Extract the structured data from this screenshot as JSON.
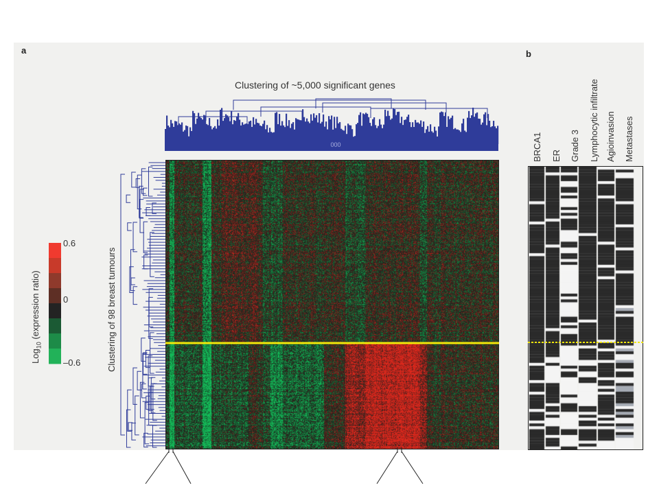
{
  "panel_a": {
    "letter": "a",
    "gene_dendrogram_title": "Clustering of ~5,000 significant genes",
    "tumour_dendrogram_title": "Clustering of 98 breast tumours",
    "dendrogram_node_label": "000",
    "colour_scale": {
      "title_prefix": "Log",
      "title_sub": "10",
      "title_suffix": " (expression ratio)",
      "max_label": "0.6",
      "mid_label": "0",
      "min_label": "–0.6",
      "colors": [
        "#f03a2f",
        "#c83a2a",
        "#8f3a2c",
        "#5e2f25",
        "#232323",
        "#1b5a34",
        "#1d8b48",
        "#22b259"
      ]
    },
    "colors": {
      "dendrogram": "#2f3c9a",
      "separator": "#f2e70a",
      "heat_red": "#d9372b",
      "heat_green": "#1fae55",
      "heat_dark": "#1d2a1c"
    }
  },
  "panel_b": {
    "letter": "b",
    "columns": [
      "BRCA1",
      "ER",
      "Grade 3",
      "Lymphocytic infiltrate",
      "Agioinvasion",
      "Metastases"
    ],
    "colors": {
      "dark": "#2a2a2a",
      "light": "#f4f4f4",
      "grey": "#a6abb4",
      "separator": "#f2e70a"
    }
  }
}
